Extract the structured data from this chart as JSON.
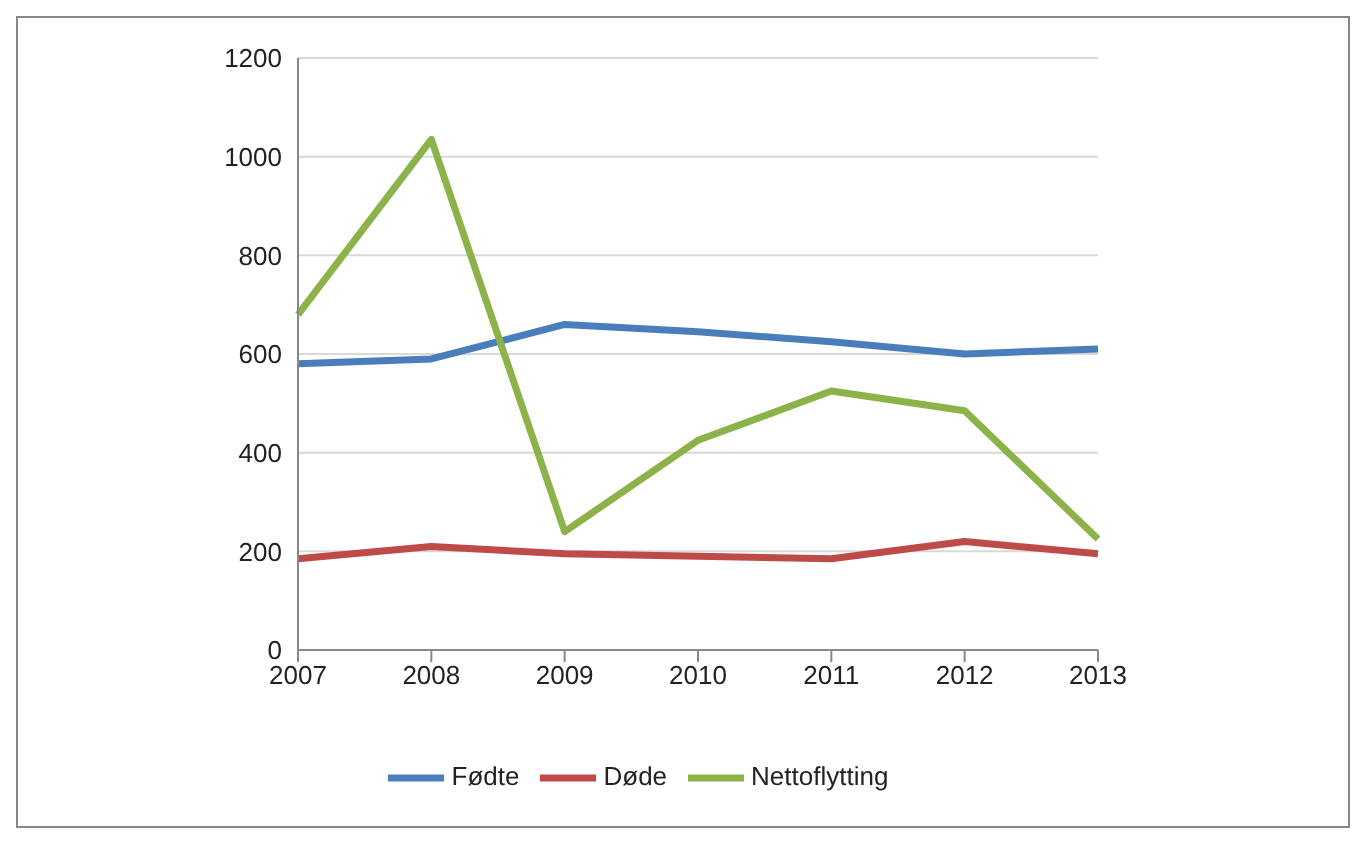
{
  "chart_data": {
    "type": "line",
    "categories": [
      "2007",
      "2008",
      "2009",
      "2010",
      "2011",
      "2012",
      "2013"
    ],
    "series": [
      {
        "name": "Fødte",
        "color": "#4a7ebb",
        "values": [
          580,
          590,
          660,
          645,
          625,
          600,
          610
        ]
      },
      {
        "name": "Døde",
        "color": "#be4b48",
        "values": [
          185,
          210,
          195,
          190,
          185,
          220,
          195
        ]
      },
      {
        "name": "Nettoflytting",
        "color": "#8cb24a",
        "values": [
          680,
          1035,
          240,
          425,
          525,
          485,
          225
        ]
      }
    ],
    "ylim": [
      0,
      1200
    ],
    "yticks": [
      0,
      200,
      400,
      600,
      800,
      1000,
      1200
    ],
    "grid": "y",
    "legend": "bottom",
    "marker": "none",
    "line_style": "solid"
  }
}
